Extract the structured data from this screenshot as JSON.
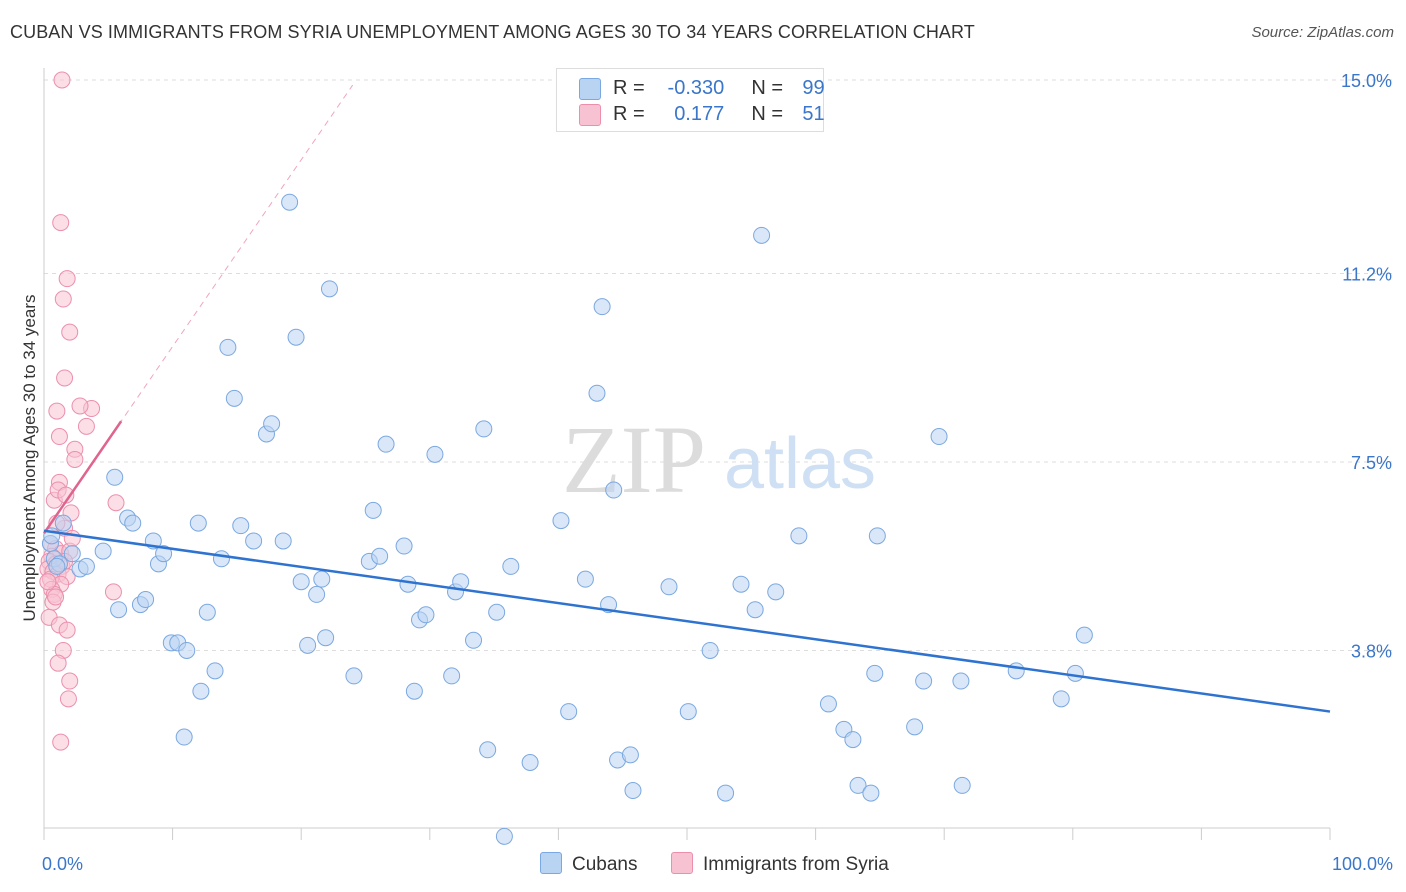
{
  "header": {
    "title": "CUBAN VS IMMIGRANTS FROM SYRIA UNEMPLOYMENT AMONG AGES 30 TO 34 YEARS CORRELATION CHART",
    "source": "Source: ZipAtlas.com"
  },
  "watermark": {
    "zip": "ZIP",
    "atlas": "atlas"
  },
  "legend": {
    "rows": [
      {
        "r_label": "R =",
        "r_value": "-0.330",
        "n_label": "N =",
        "n_value": "99"
      },
      {
        "r_label": "R =",
        "r_value": "0.177",
        "n_label": "N =",
        "n_value": "51"
      }
    ]
  },
  "colors": {
    "blue_fill": "#b9d3f3",
    "blue_stroke": "#7aa8e0",
    "blue_line": "#2f73d0",
    "pink_fill": "#f7c2d2",
    "pink_stroke": "#ec8fad",
    "pink_line": "#e0648e",
    "grid": "#dddddd",
    "axis_label": "#3a76c9"
  },
  "chart_data": {
    "type": "scatter",
    "title": "CUBAN VS IMMIGRANTS FROM SYRIA UNEMPLOYMENT AMONG AGES 30 TO 34 YEARS CORRELATION CHART",
    "xlabel": "",
    "ylabel": "Unemployment Among Ages 30 to 34 years",
    "xlim": [
      0,
      100
    ],
    "ylim": [
      0,
      15.4
    ],
    "x_tick_labels": [
      "0.0%",
      "100.0%"
    ],
    "y_ticks": [
      3.8,
      7.5,
      11.2,
      15.0
    ],
    "y_tick_labels": [
      "3.8%",
      "7.5%",
      "11.2%",
      "15.0%"
    ],
    "grid": true,
    "legend_position": "top-center",
    "series": [
      {
        "name": "Cubans",
        "color": "#7aa8e0",
        "r": -0.33,
        "n": 99,
        "trend": {
          "x": [
            0,
            100
          ],
          "y": [
            6.15,
            2.6
          ]
        },
        "points": [
          [
            0.5,
            5.9
          ],
          [
            0.8,
            5.6
          ],
          [
            1.2,
            5.5
          ],
          [
            1.5,
            6.3
          ],
          [
            2.2,
            5.7
          ],
          [
            2.8,
            5.4
          ],
          [
            3.3,
            5.45
          ],
          [
            4.6,
            5.75
          ],
          [
            5.5,
            7.2
          ],
          [
            5.8,
            4.6
          ],
          [
            6.5,
            6.4
          ],
          [
            6.9,
            6.3
          ],
          [
            7.5,
            4.7
          ],
          [
            7.9,
            4.8
          ],
          [
            8.5,
            5.95
          ],
          [
            8.9,
            5.5
          ],
          [
            9.3,
            5.7
          ],
          [
            9.9,
            3.95
          ],
          [
            10.4,
            3.95
          ],
          [
            11.1,
            3.8
          ],
          [
            10.9,
            2.1
          ],
          [
            12.0,
            6.3
          ],
          [
            12.2,
            3.0
          ],
          [
            12.7,
            4.55
          ],
          [
            13.3,
            3.4
          ],
          [
            13.8,
            5.6
          ],
          [
            14.3,
            9.75
          ],
          [
            14.8,
            8.75
          ],
          [
            15.3,
            6.25
          ],
          [
            16.3,
            5.95
          ],
          [
            17.3,
            8.05
          ],
          [
            17.7,
            8.25
          ],
          [
            18.6,
            5.95
          ],
          [
            19.1,
            12.6
          ],
          [
            19.6,
            9.95
          ],
          [
            20.0,
            5.15
          ],
          [
            20.5,
            3.9
          ],
          [
            21.2,
            4.9
          ],
          [
            21.6,
            5.2
          ],
          [
            21.9,
            4.05
          ],
          [
            22.2,
            10.9
          ],
          [
            24.1,
            3.3
          ],
          [
            25.3,
            5.55
          ],
          [
            25.6,
            6.55
          ],
          [
            26.1,
            5.65
          ],
          [
            26.6,
            7.85
          ],
          [
            28.0,
            5.85
          ],
          [
            28.3,
            5.1
          ],
          [
            28.8,
            3.0
          ],
          [
            29.2,
            4.4
          ],
          [
            29.7,
            4.5
          ],
          [
            30.4,
            7.65
          ],
          [
            31.7,
            3.3
          ],
          [
            32.0,
            4.95
          ],
          [
            32.4,
            5.15
          ],
          [
            33.4,
            4.0
          ],
          [
            34.2,
            8.15
          ],
          [
            34.5,
            1.85
          ],
          [
            35.2,
            4.55
          ],
          [
            35.8,
            0.15
          ],
          [
            36.3,
            5.45
          ],
          [
            37.8,
            1.6
          ],
          [
            40.2,
            6.35
          ],
          [
            40.8,
            2.6
          ],
          [
            42.1,
            5.2
          ],
          [
            43.0,
            8.85
          ],
          [
            43.4,
            10.55
          ],
          [
            43.9,
            4.7
          ],
          [
            44.3,
            6.95
          ],
          [
            44.6,
            1.65
          ],
          [
            45.6,
            1.75
          ],
          [
            45.8,
            1.05
          ],
          [
            48.6,
            5.05
          ],
          [
            50.1,
            2.6
          ],
          [
            51.8,
            3.8
          ],
          [
            53.0,
            1.0
          ],
          [
            54.2,
            5.1
          ],
          [
            55.3,
            4.6
          ],
          [
            55.8,
            11.95
          ],
          [
            56.9,
            4.95
          ],
          [
            58.7,
            6.05
          ],
          [
            61.0,
            2.75
          ],
          [
            62.2,
            2.25
          ],
          [
            62.9,
            2.05
          ],
          [
            63.3,
            1.15
          ],
          [
            64.3,
            1.0
          ],
          [
            64.6,
            3.35
          ],
          [
            64.8,
            6.05
          ],
          [
            67.7,
            2.3
          ],
          [
            68.4,
            3.2
          ],
          [
            69.6,
            8.0
          ],
          [
            71.3,
            3.2
          ],
          [
            71.4,
            1.15
          ],
          [
            75.6,
            3.4
          ],
          [
            79.1,
            2.85
          ],
          [
            80.2,
            3.35
          ],
          [
            80.9,
            4.1
          ],
          [
            0.6,
            6.05
          ],
          [
            1.0,
            5.45
          ]
        ]
      },
      {
        "name": "Immigrants from Syria",
        "color": "#ec8fad",
        "r": 0.177,
        "n": 51,
        "trend": {
          "x": [
            0,
            6.0
          ],
          "y": [
            6.1,
            8.3
          ]
        },
        "trend_extended": {
          "x": [
            0,
            24.0
          ],
          "y": [
            6.1,
            14.9
          ]
        },
        "points": [
          [
            1.4,
            15.0
          ],
          [
            1.3,
            12.2
          ],
          [
            1.8,
            11.1
          ],
          [
            1.5,
            10.7
          ],
          [
            2.0,
            10.05
          ],
          [
            1.6,
            9.15
          ],
          [
            3.7,
            8.55
          ],
          [
            2.8,
            8.6
          ],
          [
            1.0,
            8.5
          ],
          [
            3.3,
            8.2
          ],
          [
            1.2,
            8.0
          ],
          [
            2.4,
            7.75
          ],
          [
            2.4,
            7.55
          ],
          [
            1.2,
            7.1
          ],
          [
            0.8,
            6.75
          ],
          [
            1.1,
            6.95
          ],
          [
            1.7,
            6.85
          ],
          [
            5.6,
            6.7
          ],
          [
            2.1,
            6.5
          ],
          [
            1.6,
            6.2
          ],
          [
            0.5,
            5.9
          ],
          [
            0.9,
            5.8
          ],
          [
            1.3,
            5.7
          ],
          [
            0.6,
            5.65
          ],
          [
            2.0,
            5.75
          ],
          [
            0.4,
            5.55
          ],
          [
            0.9,
            5.5
          ],
          [
            1.4,
            5.45
          ],
          [
            0.3,
            5.4
          ],
          [
            0.7,
            5.35
          ],
          [
            1.1,
            5.3
          ],
          [
            1.8,
            5.25
          ],
          [
            0.5,
            5.2
          ],
          [
            1.3,
            5.1
          ],
          [
            0.6,
            5.0
          ],
          [
            0.8,
            4.9
          ],
          [
            5.4,
            4.95
          ],
          [
            0.7,
            4.75
          ],
          [
            0.4,
            4.45
          ],
          [
            1.2,
            4.3
          ],
          [
            1.8,
            4.2
          ],
          [
            1.5,
            3.8
          ],
          [
            1.1,
            3.55
          ],
          [
            2.0,
            3.2
          ],
          [
            1.9,
            2.85
          ],
          [
            1.3,
            2.0
          ],
          [
            0.9,
            4.85
          ],
          [
            1.6,
            5.55
          ],
          [
            0.3,
            5.15
          ],
          [
            2.2,
            6.0
          ],
          [
            1.0,
            6.3
          ]
        ]
      }
    ]
  }
}
